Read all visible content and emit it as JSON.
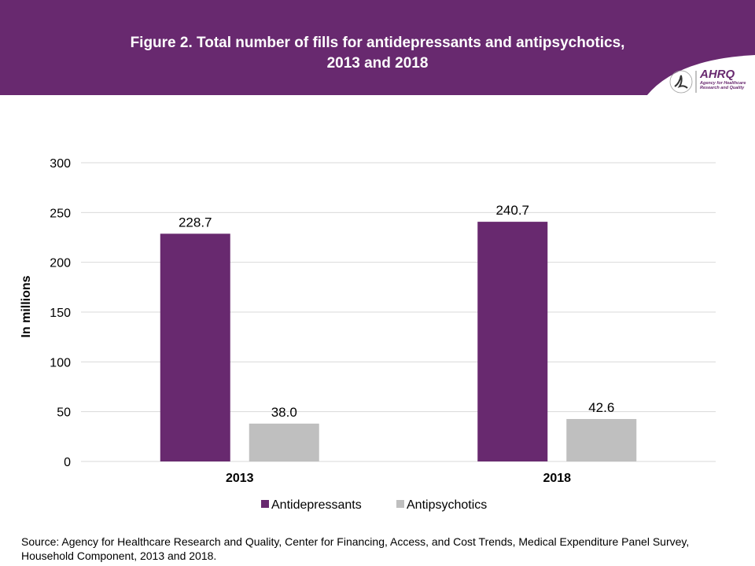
{
  "header": {
    "title_line1": "Figure 2. Total number of fills for antidepressants and antipsychotics,",
    "title_line2": "2013 and 2018",
    "color": "#68296f"
  },
  "logo": {
    "name": "AHRQ",
    "subtitle_line1": "Agency for Healthcare",
    "subtitle_line2": "Research and Quality"
  },
  "chart_data": {
    "type": "bar",
    "categories": [
      "2013",
      "2018"
    ],
    "series": [
      {
        "name": "Antidepressants",
        "values": [
          228.7,
          240.7
        ],
        "labels": [
          "228.7",
          "240.7"
        ],
        "color": "#68296f"
      },
      {
        "name": "Antipsychotics",
        "values": [
          38.0,
          42.6
        ],
        "labels": [
          "38.0",
          "42.6"
        ],
        "color": "#bfbfbf"
      }
    ],
    "ylabel": "In millions",
    "ylim": [
      0,
      300
    ],
    "yticks": [
      0,
      50,
      100,
      150,
      200,
      250,
      300
    ],
    "grid": true,
    "legend": "bottom"
  },
  "source": "Source: Agency for Healthcare Research and Quality, Center for Financing, Access, and Cost Trends, Medical Expenditure Panel Survey, Household Component, 2013 and 2018."
}
